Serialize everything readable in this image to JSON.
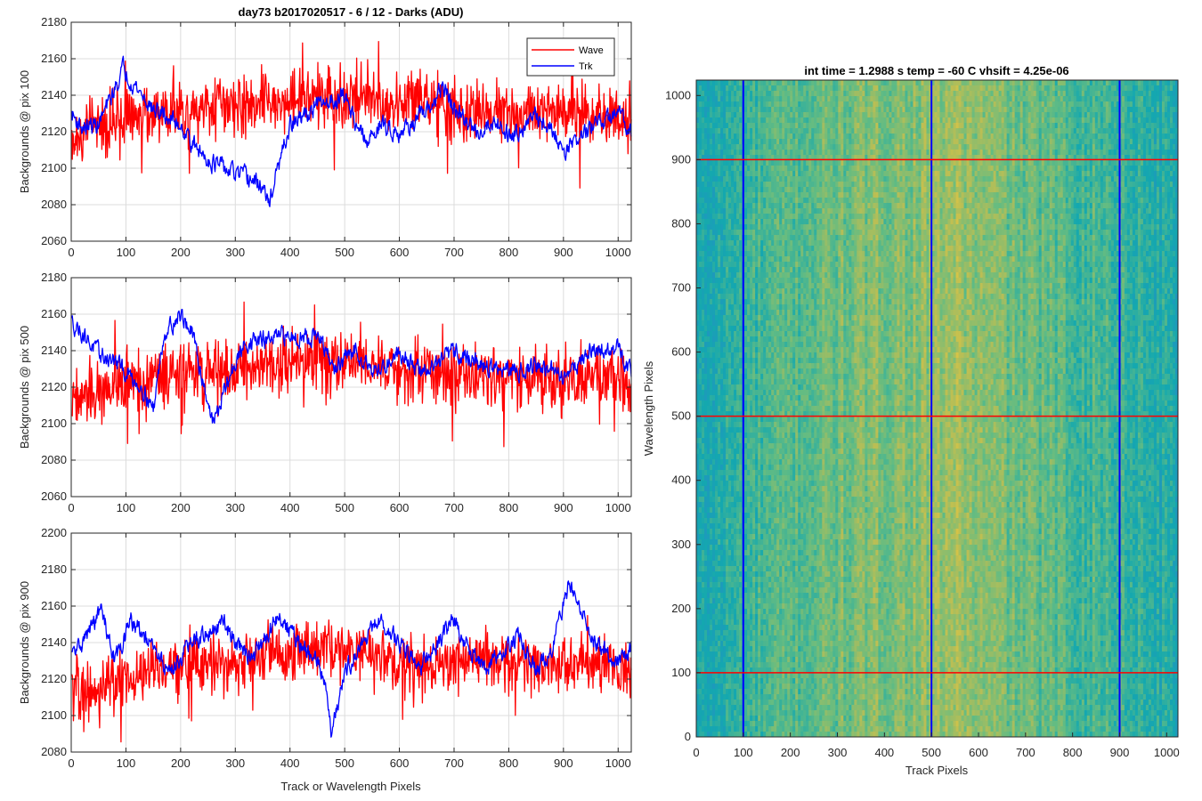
{
  "figure_title": "day73 b2017020517 - 6 / 12 - Darks (ADU)",
  "chart_data": [
    {
      "type": "line",
      "ylabel": "Backgrounds @ pix 100",
      "xlabel": "",
      "xlim": [
        0,
        1024
      ],
      "ylim": [
        2060,
        2180
      ],
      "xticks": [
        0,
        100,
        200,
        300,
        400,
        500,
        600,
        700,
        800,
        900,
        1000
      ],
      "yticks": [
        2060,
        2080,
        2100,
        2120,
        2140,
        2160,
        2180
      ],
      "grid": true,
      "legend": {
        "position": "top-right",
        "entries": [
          "Wave",
          "Trk"
        ]
      },
      "series": [
        {
          "name": "Wave",
          "color": "#ff0000",
          "x": [
            0,
            50,
            100,
            150,
            200,
            250,
            300,
            350,
            400,
            450,
            500,
            550,
            600,
            650,
            700,
            750,
            800,
            850,
            900,
            950,
            1024
          ],
          "values": [
            2118,
            2122,
            2126,
            2130,
            2132,
            2135,
            2134,
            2136,
            2138,
            2138,
            2140,
            2138,
            2136,
            2134,
            2132,
            2132,
            2132,
            2130,
            2130,
            2130,
            2130
          ],
          "noise_amplitude": 13
        },
        {
          "name": "Trk",
          "color": "#0000ff",
          "x": [
            0,
            20,
            50,
            75,
            95,
            110,
            150,
            200,
            230,
            260,
            290,
            320,
            350,
            360,
            400,
            450,
            500,
            540,
            560,
            600,
            650,
            680,
            700,
            740,
            780,
            800,
            850,
            880,
            900,
            950,
            1000,
            1024
          ],
          "values": [
            2130,
            2122,
            2124,
            2140,
            2155,
            2148,
            2132,
            2124,
            2110,
            2103,
            2098,
            2095,
            2090,
            2080,
            2123,
            2134,
            2140,
            2112,
            2124,
            2120,
            2130,
            2145,
            2132,
            2120,
            2126,
            2118,
            2128,
            2120,
            2110,
            2122,
            2130,
            2122
          ],
          "noise_amplitude": 5
        }
      ]
    },
    {
      "type": "line",
      "ylabel": "Backgrounds @ pix 500",
      "xlabel": "",
      "xlim": [
        0,
        1024
      ],
      "ylim": [
        2060,
        2180
      ],
      "xticks": [
        0,
        100,
        200,
        300,
        400,
        500,
        600,
        700,
        800,
        900,
        1000
      ],
      "yticks": [
        2060,
        2080,
        2100,
        2120,
        2140,
        2160,
        2180
      ],
      "grid": true,
      "series": [
        {
          "name": "Wave",
          "color": "#ff0000",
          "x": [
            0,
            50,
            100,
            150,
            200,
            250,
            300,
            350,
            400,
            450,
            500,
            550,
            600,
            650,
            700,
            750,
            800,
            850,
            900,
            950,
            1024
          ],
          "values": [
            2114,
            2117,
            2122,
            2126,
            2128,
            2128,
            2130,
            2132,
            2134,
            2135,
            2134,
            2133,
            2130,
            2128,
            2128,
            2126,
            2125,
            2125,
            2124,
            2124,
            2124
          ],
          "noise_amplitude": 13
        },
        {
          "name": "Trk",
          "color": "#0000ff",
          "x": [
            0,
            20,
            50,
            80,
            100,
            130,
            150,
            170,
            200,
            220,
            260,
            290,
            320,
            360,
            400,
            450,
            480,
            520,
            560,
            600,
            640,
            680,
            700,
            750,
            800,
            850,
            900,
            950,
            1000,
            1024
          ],
          "values": [
            2156,
            2150,
            2138,
            2134,
            2128,
            2120,
            2108,
            2150,
            2160,
            2150,
            2100,
            2126,
            2145,
            2146,
            2148,
            2148,
            2130,
            2140,
            2128,
            2140,
            2128,
            2135,
            2140,
            2132,
            2128,
            2132,
            2126,
            2140,
            2140,
            2130
          ],
          "noise_amplitude": 5
        }
      ]
    },
    {
      "type": "line",
      "ylabel": "Backgrounds @ pix 900",
      "xlabel": "Track or Wavelength Pixels",
      "xlim": [
        0,
        1024
      ],
      "ylim": [
        2080,
        2200
      ],
      "xticks": [
        0,
        100,
        200,
        300,
        400,
        500,
        600,
        700,
        800,
        900,
        1000
      ],
      "yticks": [
        2080,
        2100,
        2120,
        2140,
        2160,
        2180,
        2200
      ],
      "grid": true,
      "series": [
        {
          "name": "Wave",
          "color": "#ff0000",
          "x": [
            0,
            50,
            100,
            150,
            200,
            250,
            300,
            350,
            400,
            450,
            500,
            550,
            600,
            650,
            700,
            750,
            800,
            850,
            900,
            950,
            1024
          ],
          "values": [
            2112,
            2116,
            2120,
            2124,
            2128,
            2128,
            2130,
            2132,
            2136,
            2136,
            2134,
            2134,
            2130,
            2128,
            2130,
            2130,
            2130,
            2130,
            2128,
            2128,
            2126
          ],
          "noise_amplitude": 12
        },
        {
          "name": "Trk",
          "color": "#0000ff",
          "x": [
            0,
            20,
            55,
            80,
            110,
            140,
            180,
            220,
            280,
            330,
            380,
            420,
            460,
            475,
            500,
            560,
            600,
            640,
            700,
            720,
            760,
            820,
            850,
            880,
            910,
            930,
            960,
            1000,
            1024
          ],
          "values": [
            2132,
            2140,
            2158,
            2130,
            2152,
            2140,
            2124,
            2140,
            2150,
            2130,
            2155,
            2138,
            2125,
            2092,
            2124,
            2152,
            2140,
            2128,
            2152,
            2140,
            2126,
            2144,
            2124,
            2138,
            2172,
            2160,
            2140,
            2128,
            2138
          ],
          "noise_amplitude": 5
        }
      ]
    },
    {
      "type": "heatmap",
      "title": "int time = 1.2988 s    temp = -60 C    vhsift = 4.25e-06",
      "xlabel": "Track Pixels",
      "ylabel": "Wavelength Pixels",
      "xlim": [
        0,
        1024
      ],
      "ylim": [
        0,
        1024
      ],
      "xticks": [
        0,
        100,
        200,
        300,
        400,
        500,
        600,
        700,
        800,
        900,
        1000
      ],
      "yticks": [
        0,
        100,
        200,
        300,
        400,
        500,
        600,
        700,
        800,
        900,
        1000
      ],
      "colormap": "parula",
      "column_profile": {
        "x": [
          0,
          50,
          100,
          200,
          300,
          400,
          500,
          550,
          600,
          700,
          800,
          900,
          950,
          1024
        ],
        "level": [
          0.25,
          0.32,
          0.4,
          0.5,
          0.57,
          0.62,
          0.66,
          0.72,
          0.64,
          0.56,
          0.48,
          0.44,
          0.38,
          0.3
        ]
      },
      "overlay_lines": {
        "vertical": {
          "color": "#0000ff",
          "x": [
            100,
            500,
            900
          ]
        },
        "horizontal": {
          "color": "#ff0000",
          "y": [
            100,
            500,
            900
          ]
        }
      }
    }
  ]
}
